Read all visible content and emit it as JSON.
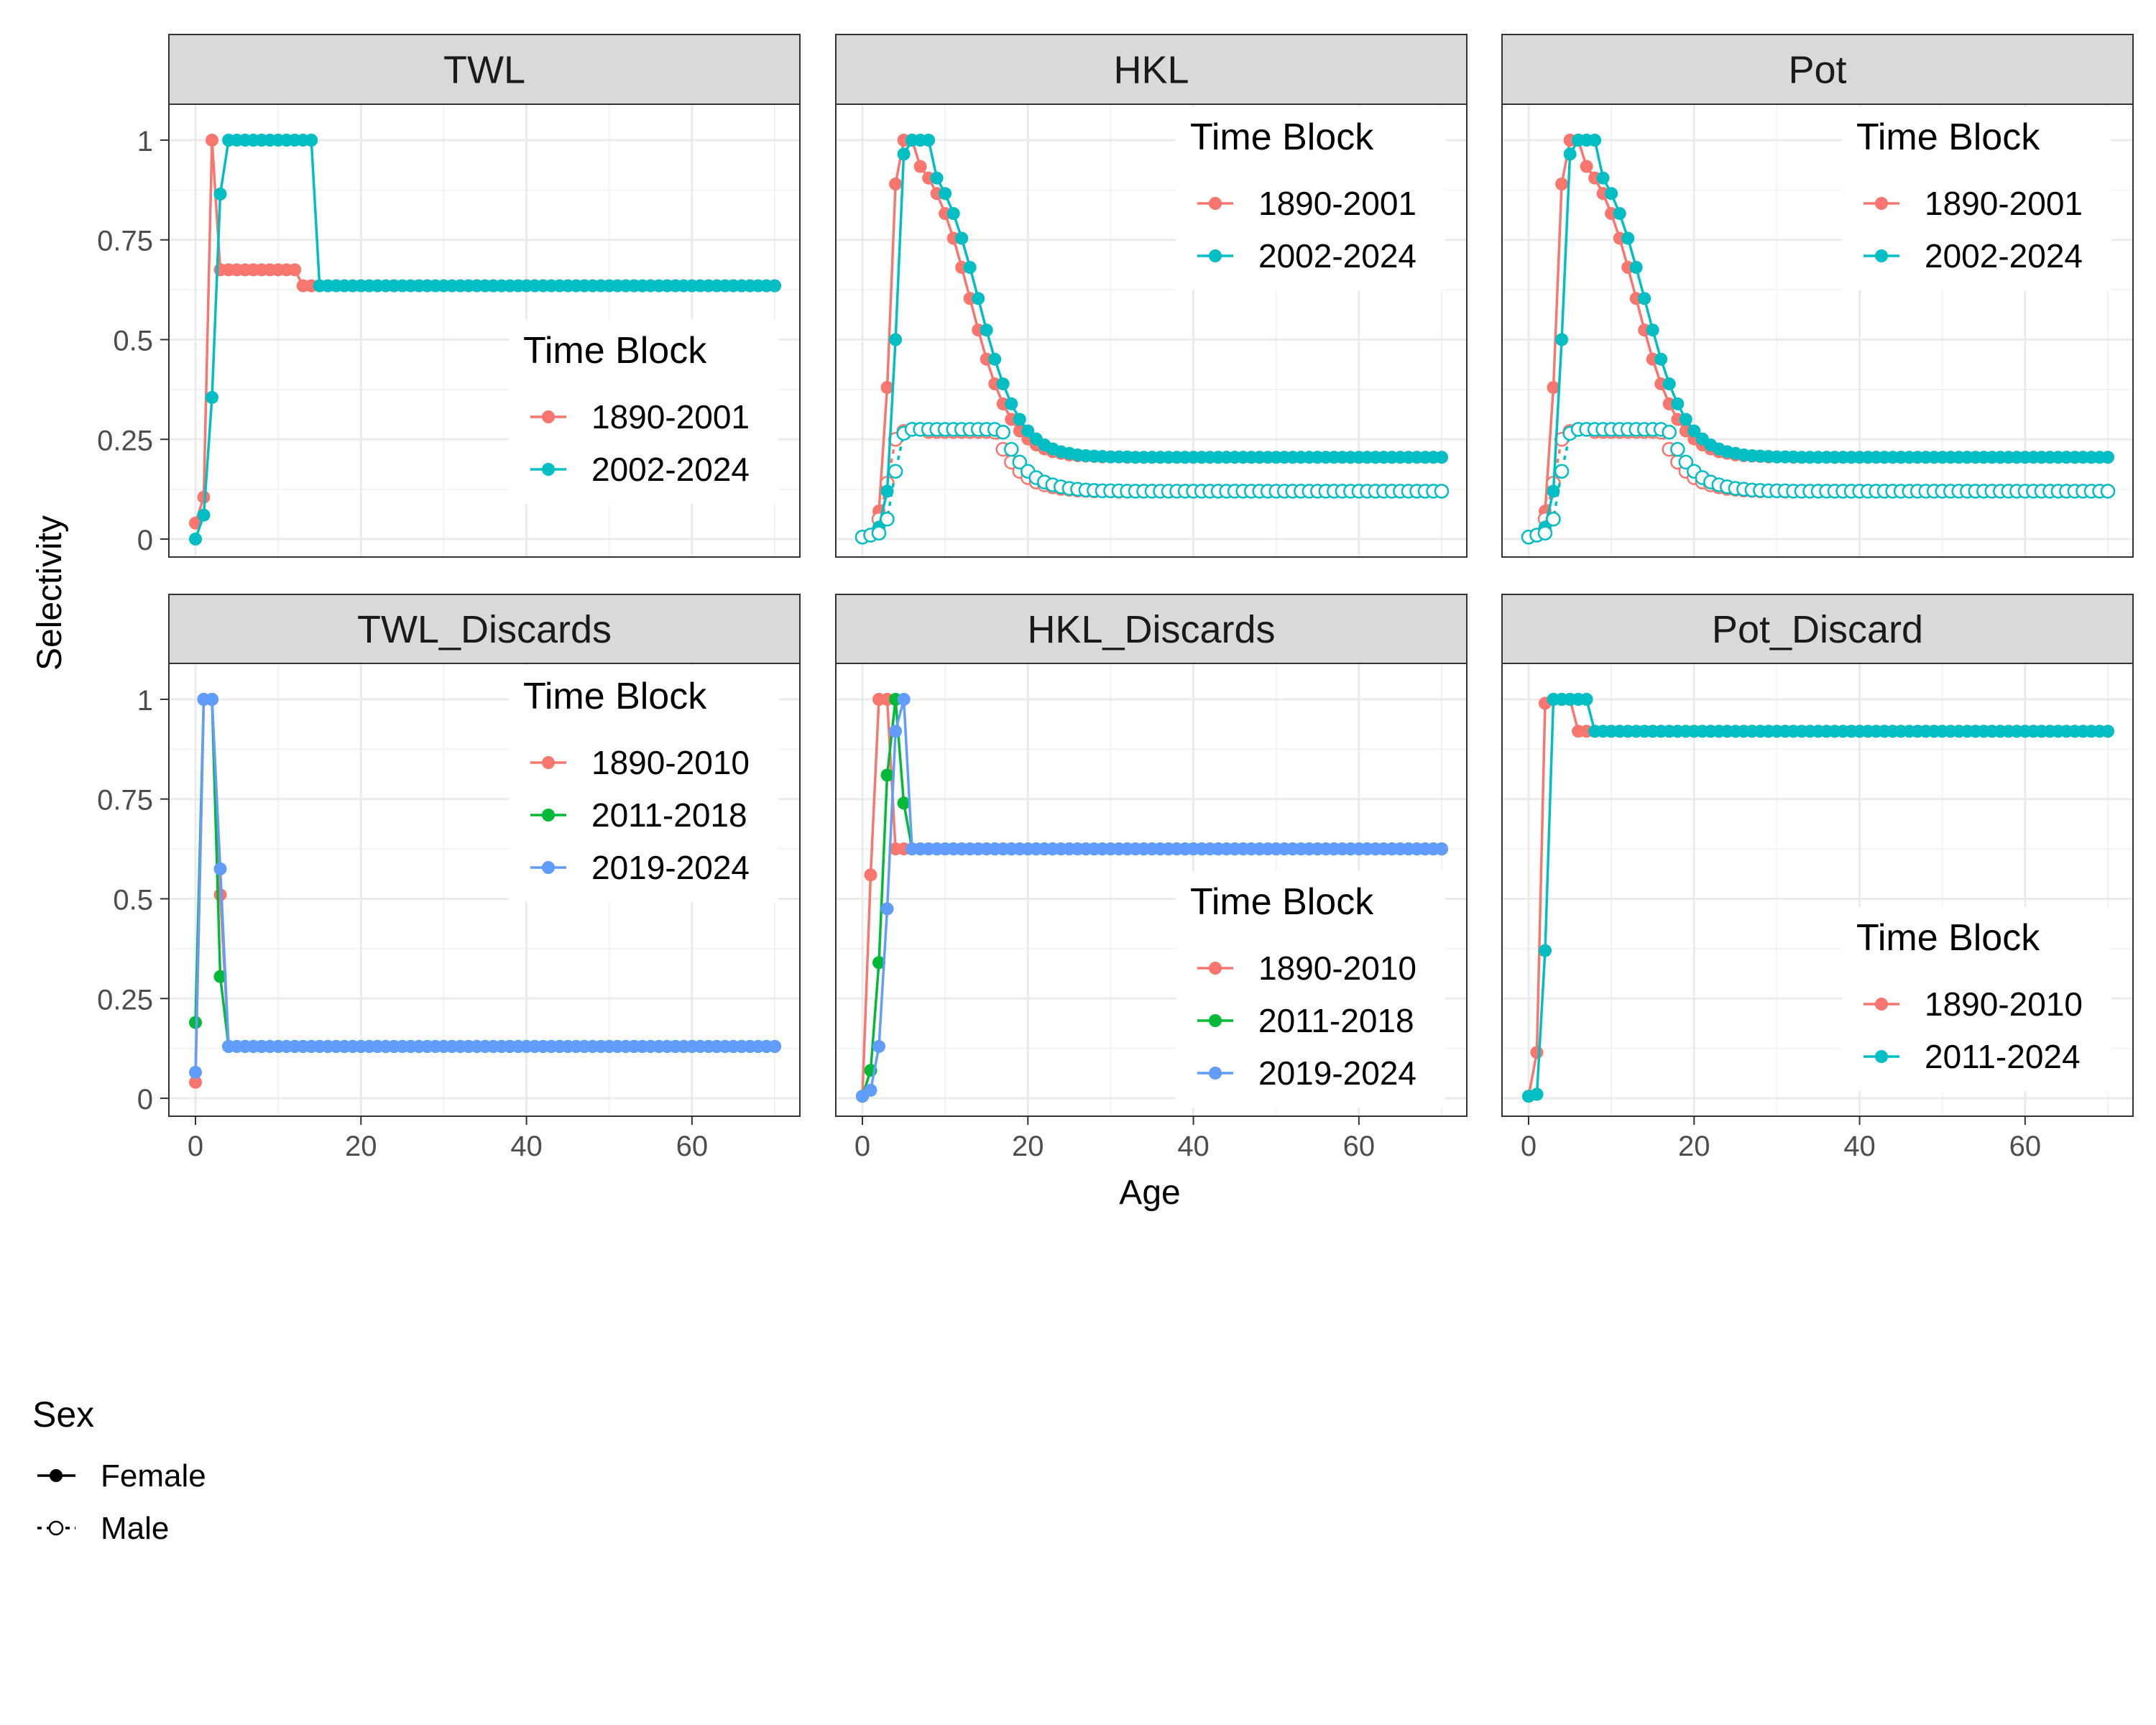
{
  "labels": {
    "xlabel": "Age",
    "ylabel": "Selectivity"
  },
  "sex_legend": {
    "title": "Sex",
    "items": [
      {
        "label": "Female"
      },
      {
        "label": "Male"
      }
    ]
  },
  "colors": {
    "c1": "#F8766D",
    "c2": "#00BFC4",
    "g3a": "#00BA38",
    "g3b": "#619CFF"
  },
  "chart_data": [
    {
      "panel": "TWL",
      "type": "line",
      "x_range": [
        0,
        70
      ],
      "ylim": [
        0,
        1
      ],
      "x_ticks": [
        0,
        20,
        40,
        60
      ],
      "y_ticks": [
        0,
        0.25,
        0.5,
        0.75,
        1
      ],
      "y_tick_labels": [
        "0",
        "0.25",
        "0.5",
        "0.75",
        "1"
      ],
      "legend": {
        "title": "Time Block",
        "position": "center-right"
      },
      "series": [
        {
          "name": "1890-2001",
          "sex": "Female",
          "color": "#F8766D",
          "model": "plateau",
          "p": {
            "a": 0,
            "v0": 0.04,
            "pts": [
              [
                1,
                0.105
              ],
              [
                2,
                1
              ]
            ],
            "d": 12,
            "dv": 0.675,
            "f": 13,
            "fv": 0.635,
            "end": 70
          }
        },
        {
          "name": "2002-2024",
          "sex": "Female",
          "color": "#00BFC4",
          "model": "plateau",
          "p": {
            "a": 0,
            "v0": 0.0,
            "pts": [
              [
                1,
                0.06
              ],
              [
                2,
                0.355
              ],
              [
                3,
                0.865
              ],
              [
                4,
                1
              ]
            ],
            "d": 14,
            "dv": 1,
            "f": 15,
            "fv": 0.635,
            "end": 70
          }
        }
      ]
    },
    {
      "panel": "HKL",
      "type": "line",
      "x_range": [
        0,
        70
      ],
      "ylim": [
        0,
        1
      ],
      "x_ticks": [
        0,
        20,
        40,
        60
      ],
      "y_ticks": [
        0,
        0.25,
        0.5,
        0.75,
        1
      ],
      "y_tick_labels": [
        "0",
        "0.25",
        "0.5",
        "0.75",
        "1"
      ],
      "legend": {
        "title": "Time Block",
        "position": "top-right"
      },
      "series": [
        {
          "name": "1890-2001",
          "sex": "Female",
          "color": "#F8766D",
          "model": "dome",
          "p": {
            "a": 0,
            "v0": 0.005,
            "pts": [
              [
                1,
                0.01
              ],
              [
                2,
                0.07
              ],
              [
                3,
                0.38
              ],
              [
                4,
                0.89
              ],
              [
                5,
                1
              ],
              [
                6,
                1
              ]
            ],
            "ts": 6,
            "floor": 0.205,
            "mid": 13,
            "sc": 2.5,
            "end": 70
          }
        },
        {
          "name": "1890-2001",
          "sex": "Male",
          "color": "#F8766D",
          "model": "dome",
          "p": {
            "a": 0,
            "v0": 0.005,
            "pts": [
              [
                1,
                0.01
              ],
              [
                2,
                0.05
              ],
              [
                3,
                0.14
              ],
              [
                4,
                0.25
              ],
              [
                5,
                0.27
              ],
              [
                6,
                0.275
              ],
              [
                7,
                0.275
              ],
              [
                8,
                0.27
              ]
            ],
            "ts": 8,
            "floor": 0.12,
            "mid": 12,
            "sc": 2.5,
            "end": 70
          }
        },
        {
          "name": "2002-2024",
          "sex": "Female",
          "color": "#00BFC4",
          "model": "dome",
          "p": {
            "a": 0,
            "v0": 0.005,
            "pts": [
              [
                1,
                0.01
              ],
              [
                2,
                0.03
              ],
              [
                3,
                0.12
              ],
              [
                4,
                0.5
              ],
              [
                5,
                0.965
              ],
              [
                6,
                1
              ],
              [
                7,
                1
              ],
              [
                8,
                1
              ]
            ],
            "ts": 8,
            "floor": 0.205,
            "mid": 14,
            "sc": 2.5,
            "end": 70
          }
        },
        {
          "name": "2002-2024",
          "sex": "Male",
          "color": "#00BFC4",
          "model": "dome",
          "p": {
            "a": 0,
            "v0": 0.005,
            "pts": [
              [
                1,
                0.01
              ],
              [
                2,
                0.015
              ],
              [
                3,
                0.05
              ],
              [
                4,
                0.17
              ],
              [
                5,
                0.265
              ],
              [
                6,
                0.275
              ],
              [
                7,
                0.275
              ],
              [
                8,
                0.275
              ]
            ],
            "ts": 8,
            "floor": 0.12,
            "mid": 13,
            "sc": 2.5,
            "end": 70
          }
        }
      ]
    },
    {
      "panel": "Pot",
      "type": "line",
      "x_range": [
        0,
        70
      ],
      "ylim": [
        0,
        1
      ],
      "x_ticks": [
        0,
        20,
        40,
        60
      ],
      "y_ticks": [
        0,
        0.25,
        0.5,
        0.75,
        1
      ],
      "y_tick_labels": [
        "0",
        "0.25",
        "0.5",
        "0.75",
        "1"
      ],
      "legend": {
        "title": "Time Block",
        "position": "top-right"
      },
      "series": [
        {
          "name": "1890-2001",
          "sex": "Female",
          "color": "#F8766D",
          "model": "dome",
          "p": {
            "a": 0,
            "v0": 0.005,
            "pts": [
              [
                1,
                0.01
              ],
              [
                2,
                0.07
              ],
              [
                3,
                0.38
              ],
              [
                4,
                0.89
              ],
              [
                5,
                1
              ],
              [
                6,
                1
              ]
            ],
            "ts": 6,
            "floor": 0.205,
            "mid": 13,
            "sc": 2.5,
            "end": 70
          }
        },
        {
          "name": "1890-2001",
          "sex": "Male",
          "color": "#F8766D",
          "model": "dome",
          "p": {
            "a": 0,
            "v0": 0.005,
            "pts": [
              [
                1,
                0.01
              ],
              [
                2,
                0.05
              ],
              [
                3,
                0.14
              ],
              [
                4,
                0.25
              ],
              [
                5,
                0.27
              ],
              [
                6,
                0.275
              ],
              [
                7,
                0.275
              ],
              [
                8,
                0.27
              ]
            ],
            "ts": 8,
            "floor": 0.12,
            "mid": 12,
            "sc": 2.5,
            "end": 70
          }
        },
        {
          "name": "2002-2024",
          "sex": "Female",
          "color": "#00BFC4",
          "model": "dome",
          "p": {
            "a": 0,
            "v0": 0.005,
            "pts": [
              [
                1,
                0.01
              ],
              [
                2,
                0.03
              ],
              [
                3,
                0.12
              ],
              [
                4,
                0.5
              ],
              [
                5,
                0.965
              ],
              [
                6,
                1
              ],
              [
                7,
                1
              ],
              [
                8,
                1
              ]
            ],
            "ts": 8,
            "floor": 0.205,
            "mid": 14,
            "sc": 2.5,
            "end": 70
          }
        },
        {
          "name": "2002-2024",
          "sex": "Male",
          "color": "#00BFC4",
          "model": "dome",
          "p": {
            "a": 0,
            "v0": 0.005,
            "pts": [
              [
                1,
                0.01
              ],
              [
                2,
                0.015
              ],
              [
                3,
                0.05
              ],
              [
                4,
                0.17
              ],
              [
                5,
                0.265
              ],
              [
                6,
                0.275
              ],
              [
                7,
                0.275
              ],
              [
                8,
                0.275
              ]
            ],
            "ts": 8,
            "floor": 0.12,
            "mid": 13,
            "sc": 2.5,
            "end": 70
          }
        }
      ]
    },
    {
      "panel": "TWL_Discards",
      "type": "line",
      "x_range": [
        0,
        70
      ],
      "ylim": [
        0,
        1
      ],
      "x_ticks": [
        0,
        20,
        40,
        60
      ],
      "y_ticks": [
        0,
        0.25,
        0.5,
        0.75,
        1
      ],
      "y_tick_labels": [
        "0",
        "0.25",
        "0.5",
        "0.75",
        "1"
      ],
      "legend": {
        "title": "Time Block",
        "position": "top-right"
      },
      "series": [
        {
          "name": "1890-2010",
          "sex": "Female",
          "color": "#F8766D",
          "model": "plateau",
          "p": {
            "a": 0,
            "v0": 0.04,
            "pts": [
              [
                1,
                1
              ],
              [
                2,
                1
              ],
              [
                3,
                0.51
              ]
            ],
            "f": 4,
            "fv": 0.13,
            "end": 70
          }
        },
        {
          "name": "2011-2018",
          "sex": "Female",
          "color": "#00BA38",
          "model": "plateau",
          "p": {
            "a": 0,
            "v0": 0.19,
            "pts": [
              [
                1,
                1
              ],
              [
                2,
                1
              ],
              [
                3,
                0.305
              ]
            ],
            "f": 4,
            "fv": 0.13,
            "end": 70
          }
        },
        {
          "name": "2019-2024",
          "sex": "Female",
          "color": "#619CFF",
          "model": "plateau",
          "p": {
            "a": 0,
            "v0": 0.065,
            "pts": [
              [
                1,
                1
              ],
              [
                2,
                1
              ],
              [
                3,
                0.575
              ]
            ],
            "f": 4,
            "fv": 0.13,
            "end": 70
          }
        }
      ]
    },
    {
      "panel": "HKL_Discards",
      "type": "line",
      "x_range": [
        0,
        70
      ],
      "ylim": [
        0,
        1
      ],
      "x_ticks": [
        0,
        20,
        40,
        60
      ],
      "y_ticks": [
        0,
        0.25,
        0.5,
        0.75,
        1
      ],
      "y_tick_labels": [
        "0",
        "0.25",
        "0.5",
        "0.75",
        "1"
      ],
      "legend": {
        "title": "Time Block",
        "position": "bottom-right"
      },
      "series": [
        {
          "name": "1890-2010",
          "sex": "Female",
          "color": "#F8766D",
          "model": "plateau",
          "p": {
            "a": 0,
            "v0": 0.005,
            "pts": [
              [
                1,
                0.56
              ],
              [
                2,
                1
              ],
              [
                3,
                1
              ]
            ],
            "f": 4,
            "fv": 0.625,
            "end": 70
          }
        },
        {
          "name": "2011-2018",
          "sex": "Female",
          "color": "#00BA38",
          "model": "plateau",
          "p": {
            "a": 0,
            "v0": 0.005,
            "pts": [
              [
                1,
                0.07
              ],
              [
                2,
                0.34
              ],
              [
                3,
                0.81
              ],
              [
                4,
                1
              ],
              [
                5,
                0.74
              ]
            ],
            "f": 6,
            "fv": 0.625,
            "end": 70
          }
        },
        {
          "name": "2019-2024",
          "sex": "Female",
          "color": "#619CFF",
          "model": "plateau",
          "p": {
            "a": 0,
            "v0": 0.005,
            "pts": [
              [
                1,
                0.02
              ],
              [
                2,
                0.13
              ],
              [
                3,
                0.475
              ],
              [
                4,
                0.92
              ],
              [
                5,
                1
              ]
            ],
            "f": 6,
            "fv": 0.625,
            "end": 70
          }
        }
      ]
    },
    {
      "panel": "Pot_Discard",
      "type": "line",
      "x_range": [
        0,
        70
      ],
      "ylim": [
        0,
        1
      ],
      "x_ticks": [
        0,
        20,
        40,
        60
      ],
      "y_ticks": [
        0,
        0.25,
        0.5,
        0.75,
        1
      ],
      "y_tick_labels": [
        "0",
        "0.25",
        "0.5",
        "0.75",
        "1"
      ],
      "legend": {
        "title": "Time Block",
        "position": "bottom-right"
      },
      "series": [
        {
          "name": "1890-2010",
          "sex": "Female",
          "color": "#F8766D",
          "model": "plateau",
          "p": {
            "a": 0,
            "v0": 0.005,
            "pts": [
              [
                1,
                0.115
              ],
              [
                2,
                0.99
              ],
              [
                3,
                1
              ],
              [
                4,
                1
              ],
              [
                5,
                1
              ]
            ],
            "f": 6,
            "fv": 0.92,
            "end": 70
          }
        },
        {
          "name": "2011-2024",
          "sex": "Female",
          "color": "#00BFC4",
          "model": "plateau",
          "p": {
            "a": 0,
            "v0": 0.005,
            "pts": [
              [
                1,
                0.01
              ],
              [
                2,
                0.37
              ],
              [
                3,
                1
              ],
              [
                4,
                1
              ],
              [
                5,
                1
              ],
              [
                6,
                1
              ],
              [
                7,
                1
              ]
            ],
            "f": 8,
            "fv": 0.92,
            "end": 70
          }
        }
      ]
    }
  ]
}
